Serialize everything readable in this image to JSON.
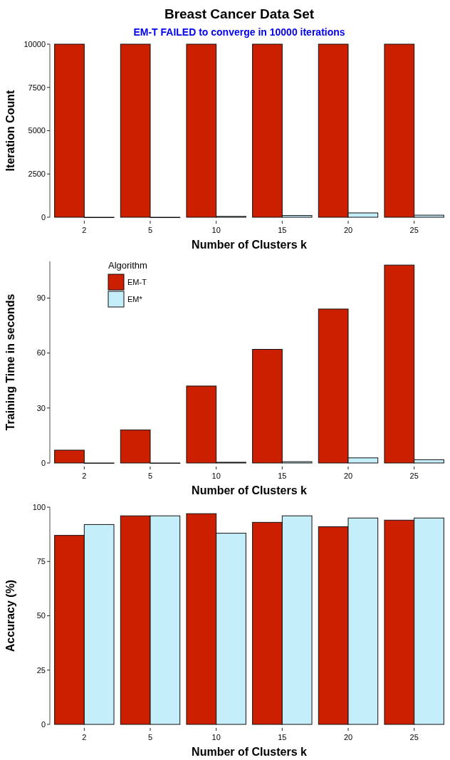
{
  "chart_data": [
    {
      "type": "bar",
      "title": "Breast Cancer Data Set",
      "annotations": [
        "EM-T FAILED to converge in 10000 iterations"
      ],
      "xlabel": "Number of Clusters k",
      "ylabel": "Iteration Count",
      "categories": [
        "2",
        "5",
        "10",
        "15",
        "20",
        "25"
      ],
      "series": [
        {
          "color": "#cc1f00",
          "values": [
            10000,
            10000,
            10000,
            10000,
            10000,
            10000
          ]
        },
        {
          "color": "#c4eefa",
          "values": [
            0,
            0,
            50,
            100,
            250,
            120
          ]
        }
      ],
      "ylim": [
        0,
        10000
      ],
      "yticks": [
        0,
        2500,
        5000,
        7500,
        10000
      ],
      "grid": false,
      "legend": false
    },
    {
      "type": "bar",
      "xlabel": "Number of Clusters k",
      "ylabel": "Training Time in seconds",
      "legend_title": "Algorithm",
      "categories": [
        "2",
        "5",
        "10",
        "15",
        "20",
        "25"
      ],
      "series": [
        {
          "name": "EM-T",
          "color": "#cc1f00",
          "values": [
            7,
            18,
            42,
            62,
            84,
            108
          ]
        },
        {
          "name": "EM*",
          "color": "#c4eefa",
          "values": [
            0,
            0,
            0.4,
            0.7,
            2.8,
            1.8
          ]
        }
      ],
      "ylim": [
        0,
        110
      ],
      "yticks": [
        0,
        30,
        60,
        90
      ],
      "grid": false,
      "legend": "top left"
    },
    {
      "type": "bar",
      "xlabel": "Number of Clusters k",
      "ylabel": "Accuracy (%)",
      "categories": [
        "2",
        "5",
        "10",
        "15",
        "20",
        "25"
      ],
      "series": [
        {
          "color": "#cc1f00",
          "values": [
            87,
            96,
            97,
            93,
            91,
            94
          ]
        },
        {
          "color": "#c4eefa",
          "values": [
            92,
            96,
            88,
            96,
            95,
            95
          ]
        }
      ],
      "ylim": [
        0,
        100
      ],
      "yticks": [
        0,
        25,
        50,
        75,
        100
      ],
      "grid": false,
      "legend": false
    }
  ]
}
